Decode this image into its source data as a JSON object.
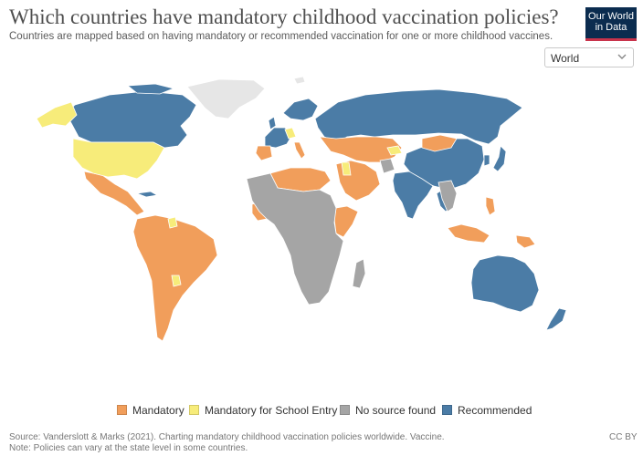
{
  "header": {
    "title": "Which countries have mandatory childhood vaccination policies?",
    "subtitle": "Countries are mapped based on having mandatory or recommended vaccination for one or more childhood vaccines.",
    "logo_line1": "Our World",
    "logo_line2": "in Data"
  },
  "region_select": {
    "value": "World"
  },
  "legend": [
    {
      "label": "Mandatory",
      "color": "#f19e5b"
    },
    {
      "label": "Mandatory for School Entry",
      "color": "#f7ec7a"
    },
    {
      "label": "No source found",
      "color": "#a5a5a5"
    },
    {
      "label": "Recommended",
      "color": "#4b7ca6"
    }
  ],
  "colors": {
    "no_data": "#e6e6e6",
    "border": "#ffffff"
  },
  "footer": {
    "source": "Source: Vanderslott & Marks (2021). Charting mandatory childhood vaccination policies worldwide. Vaccine.",
    "note": "Note: Policies can vary at the state level in some countries.",
    "license": "CC BY"
  }
}
